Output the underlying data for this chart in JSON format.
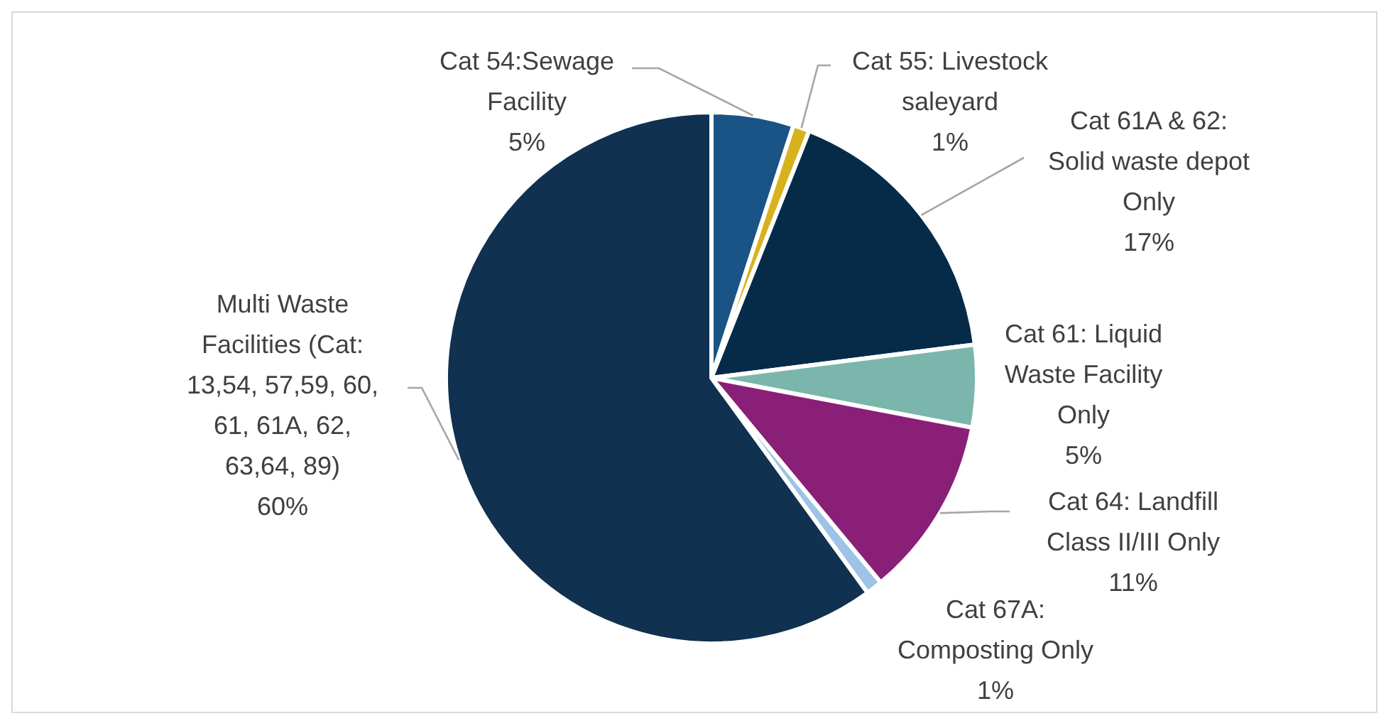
{
  "chart_data": {
    "type": "pie",
    "categories": [
      "Cat 54:Sewage Facility",
      "Cat 55: Livestock saleyard",
      "Cat 61A & 62: Solid waste depot Only",
      "Cat 61: Liquid Waste Facility Only",
      "Cat 64: Landfill Class II/III Only",
      "Cat 67A: Composting Only",
      "Multi Waste Facilities (Cat: 13,54, 57,59, 60, 61, 61A, 62, 63,64, 89)"
    ],
    "values": [
      5,
      1,
      17,
      5,
      11,
      1,
      60
    ],
    "colors": [
      "#1a5486",
      "#d8b21c",
      "#062b48",
      "#7ab6ac",
      "#8a1f78",
      "#9dc3e6",
      "#10314f"
    ],
    "value_labels": [
      "5%",
      "1%",
      "17%",
      "5%",
      "11%",
      "1%",
      "60%"
    ]
  }
}
